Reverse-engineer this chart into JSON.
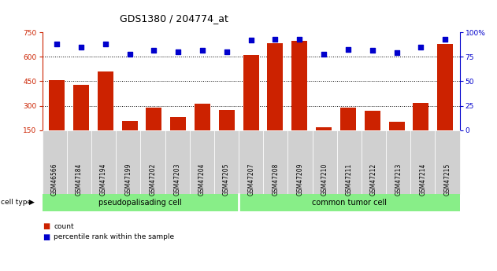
{
  "title": "GDS1380 / 204774_at",
  "samples": [
    "GSM46566",
    "GSM47184",
    "GSM47194",
    "GSM47199",
    "GSM47202",
    "GSM47203",
    "GSM47204",
    "GSM47205",
    "GSM47207",
    "GSM47208",
    "GSM47209",
    "GSM47210",
    "GSM47211",
    "GSM47212",
    "GSM47213",
    "GSM47214",
    "GSM47215"
  ],
  "counts": [
    455,
    430,
    510,
    205,
    290,
    230,
    310,
    275,
    610,
    685,
    700,
    165,
    290,
    270,
    200,
    315,
    680
  ],
  "percentiles": [
    88,
    85,
    88,
    78,
    82,
    80,
    82,
    80,
    92,
    93,
    93,
    78,
    83,
    82,
    79,
    85,
    93
  ],
  "group1_label": "pseudopalisading cell",
  "group2_label": "common tumor cell",
  "group1_count": 8,
  "group2_count": 9,
  "bar_color": "#cc2200",
  "dot_color": "#0000cc",
  "group_bg_color": "#88ee88",
  "sample_bg_color": "#d0d0d0",
  "ylim_left": [
    150,
    750
  ],
  "ylim_right": [
    0,
    100
  ],
  "yticks_left": [
    150,
    300,
    450,
    600,
    750
  ],
  "yticks_right": [
    0,
    25,
    50,
    75,
    100
  ],
  "gridlines": [
    300,
    450,
    600
  ],
  "title_fontsize": 9,
  "tick_fontsize": 6.5,
  "sample_fontsize": 5.5
}
